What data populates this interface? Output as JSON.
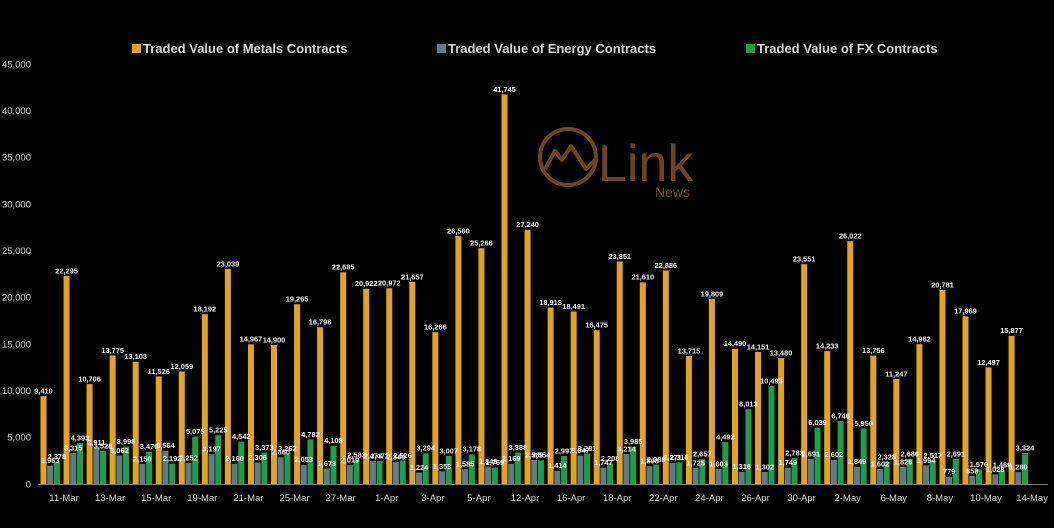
{
  "background": "#000000",
  "watermark": {
    "name": "Link",
    "sub": "News",
    "color": "#7d4c22"
  },
  "chart_data": {
    "type": "bar",
    "categories": [
      "11-Mar",
      "",
      "13-Mar",
      "",
      "15-Mar",
      "",
      "19-Mar",
      "",
      "21-Mar",
      "",
      "25-Mar",
      "",
      "27-Mar",
      "",
      "1-Apr",
      "",
      "3-Apr",
      "",
      "5-Apr",
      "",
      "12-Apr",
      "",
      "16-Apr",
      "",
      "18-Apr",
      "",
      "22-Apr",
      "",
      "24-Apr",
      "",
      "26-Apr",
      "",
      "30-Apr",
      "",
      "2-May",
      "",
      "6-May",
      "",
      "8-May",
      "",
      "10-May",
      "",
      "14-May"
    ],
    "series": [
      {
        "name": "Traded Value of Metals Contracts",
        "color": "#e3a31b",
        "values": [
          9410,
          22295,
          10706,
          13775,
          13103,
          11526,
          12059,
          18192,
          23039,
          14967,
          14900,
          19265,
          16798,
          22685,
          20922,
          20972,
          21657,
          16266,
          26560,
          25266,
          41745,
          27240,
          18913,
          18491,
          16475,
          23851,
          21610,
          22886,
          13715,
          19809,
          14490,
          14151,
          13480,
          23551,
          14233,
          26022,
          13756,
          11247,
          14982,
          20781,
          17969,
          12497,
          15877
        ]
      },
      {
        "name": "Traded Value of Energy Contracts",
        "color": "#607b87",
        "values": [
          1963,
          3315,
          3911,
          3062,
          2150,
          3564,
          2252,
          3197,
          2160,
          2306,
          2860,
          2053,
          1673,
          2019,
          2473,
          2349,
          1224,
          1353,
          1585,
          1843,
          2169,
          2568,
          1414,
          3047,
          1747,
          3214,
          1898,
          2271,
          1725,
          1603,
          1316,
          1302,
          1749,
          2691,
          2602,
          1849,
          1602,
          1826,
          1994,
          779,
          858,
          1028,
          1280
        ]
      },
      {
        "name": "Traded Value of FX Contracts",
        "color": "#1b9f4a",
        "values": [
          2378,
          4393,
          3528,
          3998,
          3470,
          2192,
          5075,
          5225,
          4542,
          3373,
          3262,
          4782,
          4108,
          2583,
          2471,
          2526,
          3294,
          3007,
          3178,
          1769,
          3388,
          2554,
          2997,
          3281,
          2208,
          3985,
          2088,
          2316,
          2657,
          4492,
          8013,
          10493,
          2783,
          6039,
          6746,
          5950,
          2328,
          2686,
          2517,
          2691,
          1570,
          1469,
          3324
        ]
      }
    ],
    "ylim": [
      0,
      45000
    ],
    "yticks": [
      0,
      5000,
      10000,
      15000,
      20000,
      25000,
      30000,
      35000,
      40000,
      45000
    ],
    "grid": false,
    "legend": "top",
    "data_labels": true
  }
}
